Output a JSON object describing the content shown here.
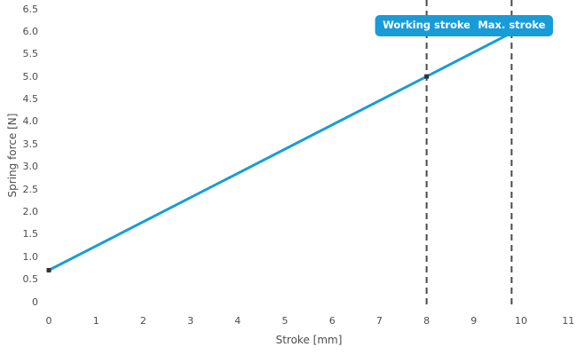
{
  "colors": {
    "line": "#189cd8",
    "badge_bg": "#189cd8",
    "badge_text": "#ffffff",
    "dashed_line": "#4a4a4a",
    "marker": "#333333",
    "axis_text": "#4d4d4d",
    "background": "#ffffff"
  },
  "chart_data": {
    "type": "line",
    "xlabel": "Stroke [mm]",
    "ylabel": "Spring force [N]",
    "xlim": [
      0,
      11
    ],
    "ylim": [
      0,
      6.5
    ],
    "grid": false,
    "legend": false,
    "x_tick_labels": [
      "0",
      "1",
      "2",
      "3",
      "4",
      "5",
      "6",
      "7",
      "8",
      "9",
      "10",
      "11"
    ],
    "y_tick_labels": [
      "0",
      "0.5",
      "1.0",
      "1.5",
      "2.0",
      "2.5",
      "3.0",
      "3.5",
      "4.0",
      "4.5",
      "5.0",
      "5.5",
      "6.0",
      "6.5"
    ],
    "series": [
      {
        "x": [
          0,
          8,
          9.8
        ],
        "y": [
          0.7,
          5.0,
          5.97
        ]
      }
    ],
    "markers": [
      {
        "x": 0,
        "y": 0.7
      },
      {
        "x": 8,
        "y": 5.0
      }
    ],
    "annotations": [
      {
        "label": "Working stroke",
        "x": 8
      },
      {
        "label": "Max. stroke",
        "x": 9.8
      }
    ]
  }
}
